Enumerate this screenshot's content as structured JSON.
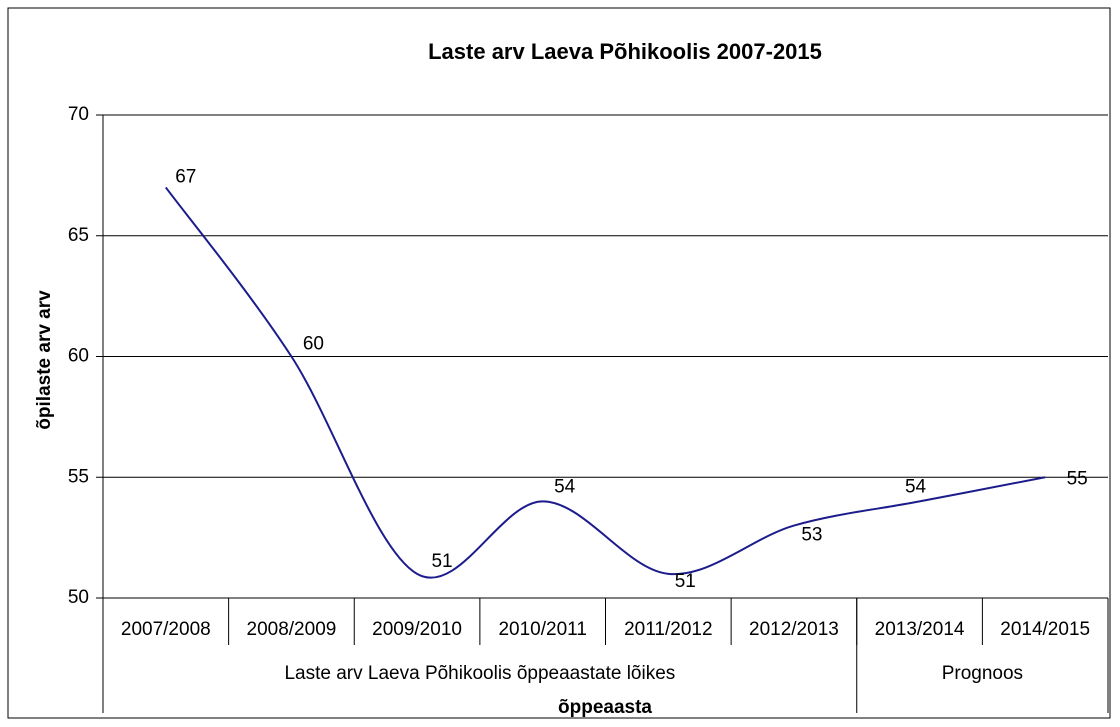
{
  "chart_data": {
    "type": "line",
    "title": "Laste arv Laeva Põhikoolis 2007-2015",
    "categories": [
      "2007/2008",
      "2008/2009",
      "2009/2010",
      "2010/2011",
      "2011/2012",
      "2012/2013",
      "2013/2014",
      "2014/2015"
    ],
    "series": [
      {
        "name": "Laste arv",
        "color": "#1c1c8c",
        "values": [
          67,
          60,
          51,
          54,
          51,
          53,
          54,
          55
        ]
      }
    ],
    "groups": [
      {
        "label": "Laste arv Laeva Põhikoolis õppeaastate lõikes",
        "span": 6
      },
      {
        "label": "Prognoos",
        "span": 2
      }
    ],
    "ylim": [
      50,
      70
    ],
    "yticks": [
      50,
      55,
      60,
      65,
      70
    ],
    "grid": true,
    "smooth": true,
    "y_label": "õpilaste arv arv",
    "x_label": "õppeaasta"
  }
}
